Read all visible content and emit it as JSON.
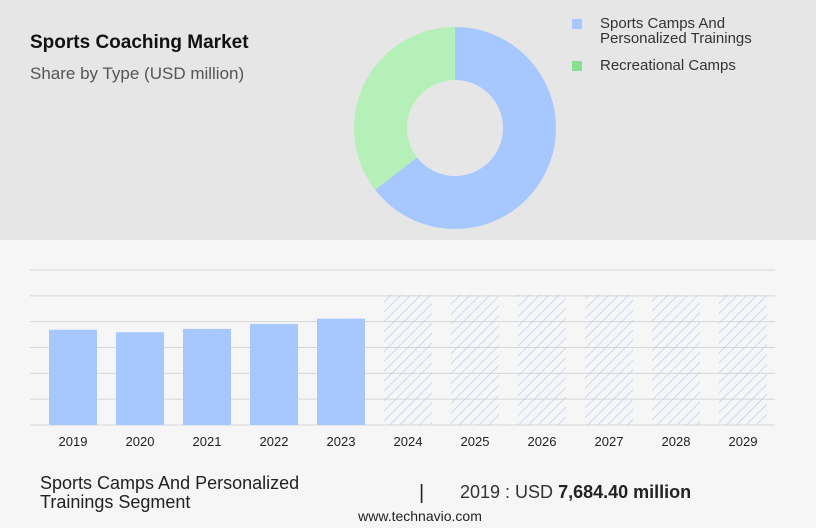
{
  "header": {
    "title": "Sports Coaching Market",
    "subtitle": "Share by Type (USD million)"
  },
  "legend": [
    {
      "label_lines": [
        "Sports Camps And",
        "Personalized Trainings"
      ],
      "color": "#a7c7ff"
    },
    {
      "label_lines": [
        "Recreational Camps"
      ],
      "color": "#86e08f"
    }
  ],
  "donut": {
    "slices": [
      {
        "name": "Sports Camps And Personalized Trainings",
        "share": 0.645,
        "color": "#a7c7ff"
      },
      {
        "name": "Recreational Camps",
        "share": 0.355,
        "color": "#b4f0b7"
      }
    ]
  },
  "chart_data": {
    "type": "bar",
    "categories": [
      "2019",
      "2020",
      "2021",
      "2022",
      "2023",
      "2024",
      "2025",
      "2026",
      "2027",
      "2028",
      "2029"
    ],
    "values": [
      7684.4,
      7480,
      7750,
      8150,
      8580,
      null,
      null,
      null,
      null,
      null,
      null
    ],
    "forecast_years": [
      "2024",
      "2025",
      "2026",
      "2027",
      "2028",
      "2029"
    ],
    "forecast_fill_level": 10500,
    "ylim": [
      0,
      12500
    ],
    "grid": true,
    "bar_color": "#a7c7ff",
    "forecast_hatch_color": "#b7cdf4"
  },
  "footer": {
    "segment_line1": "Sports Camps And Personalized",
    "segment_line2": "Trainings Segment",
    "separator": "|",
    "value_prefix": "2019 : USD",
    "value": "7,684.40 million",
    "source": "www.technavio.com"
  }
}
